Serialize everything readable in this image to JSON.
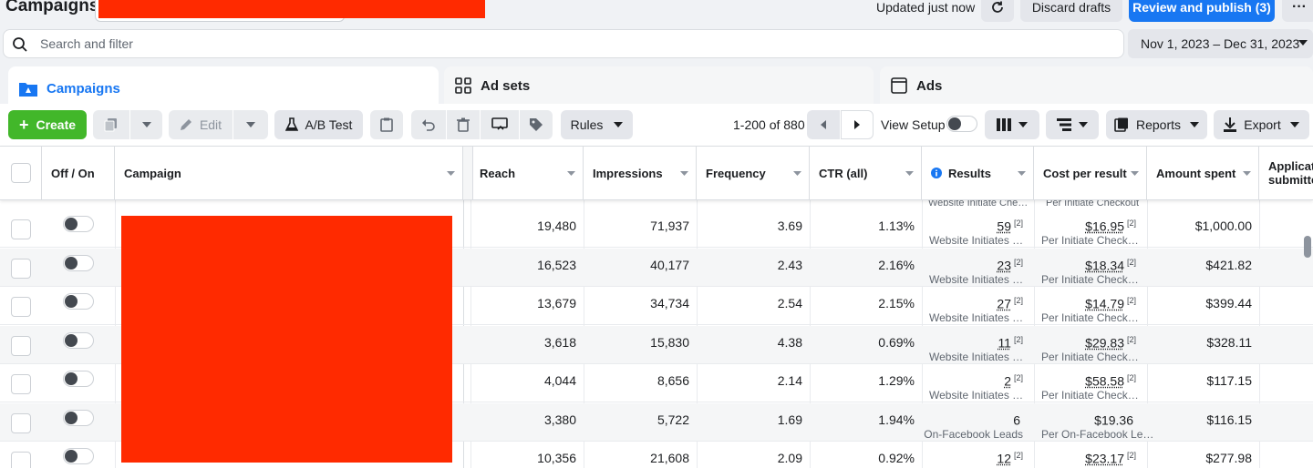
{
  "topbar": {
    "title": "Campaigns",
    "updated": "Updated just now",
    "discard": "Discard drafts",
    "publish": "Review and publish (3)"
  },
  "search": {
    "placeholder": "Search and filter"
  },
  "date_range": "Nov 1, 2023 – Dec 31, 2023",
  "tabs": [
    {
      "label": "Campaigns",
      "active": true
    },
    {
      "label": "Ad sets",
      "active": false
    },
    {
      "label": "Ads",
      "active": false
    }
  ],
  "toolbar": {
    "create": "Create",
    "edit": "Edit",
    "ab_test": "A/B Test",
    "rules": "Rules",
    "pager": "1-200 of 880",
    "view_setup": "View Setup",
    "reports": "Reports",
    "export": "Export"
  },
  "columns": {
    "off_on": "Off / On",
    "campaign": "Campaign",
    "reach": "Reach",
    "impressions": "Impressions",
    "frequency": "Frequency",
    "ctr": "CTR (all)",
    "results": "Results",
    "cost_per_result": "Cost per result",
    "amount_spent": "Amount spent",
    "applications_1": "Applicati",
    "applications_2": "submitte"
  },
  "partial_row": {
    "results_sub": "Website Initiate Che…",
    "cost_sub": "Per Initiate Checkout"
  },
  "rows": [
    {
      "reach": "19,480",
      "impressions": "71,937",
      "frequency": "3.69",
      "ctr": "1.13%",
      "results": "59",
      "results_sup": "[2]",
      "results_sub": "Website Initiates …",
      "cost": "$16.95",
      "cost_sup": "[2]",
      "cost_sub": "Per Initiate Check…",
      "spent": "$1,000.00"
    },
    {
      "reach": "16,523",
      "impressions": "40,177",
      "frequency": "2.43",
      "ctr": "2.16%",
      "results": "23",
      "results_sup": "[2]",
      "results_sub": "Website Initiates …",
      "cost": "$18.34",
      "cost_sup": "[2]",
      "cost_sub": "Per Initiate Check…",
      "spent": "$421.82"
    },
    {
      "reach": "13,679",
      "impressions": "34,734",
      "frequency": "2.54",
      "ctr": "2.15%",
      "results": "27",
      "results_sup": "[2]",
      "results_sub": "Website Initiates …",
      "cost": "$14.79",
      "cost_sup": "[2]",
      "cost_sub": "Per Initiate Check…",
      "spent": "$399.44"
    },
    {
      "reach": "3,618",
      "impressions": "15,830",
      "frequency": "4.38",
      "ctr": "0.69%",
      "results": "11",
      "results_sup": "[2]",
      "results_sub": "Website Initiates …",
      "cost": "$29.83",
      "cost_sup": "[2]",
      "cost_sub": "Per Initiate Check…",
      "spent": "$328.11"
    },
    {
      "reach": "4,044",
      "impressions": "8,656",
      "frequency": "2.14",
      "ctr": "1.29%",
      "results": "2",
      "results_sup": "[2]",
      "results_sub": "Website Initiates …",
      "cost": "$58.58",
      "cost_sup": "[2]",
      "cost_sub": "Per Initiate Check…",
      "spent": "$117.15"
    },
    {
      "reach": "3,380",
      "impressions": "5,722",
      "frequency": "1.69",
      "ctr": "1.94%",
      "results": "6",
      "results_sup": "",
      "results_sub": "On-Facebook Leads",
      "cost": "$19.36",
      "cost_sup": "",
      "cost_sub": "Per On-Facebook Le…",
      "spent": "$116.15"
    },
    {
      "reach": "10,356",
      "impressions": "21,608",
      "frequency": "2.09",
      "ctr": "0.92%",
      "results": "12",
      "results_sup": "[2]",
      "results_sub": "",
      "cost": "$23.17",
      "cost_sup": "[2]",
      "cost_sub": "",
      "spent": "$277.98"
    }
  ],
  "colors": {
    "accent": "#1877f2",
    "create": "#42b72a",
    "redaction": "#ff2a00"
  }
}
